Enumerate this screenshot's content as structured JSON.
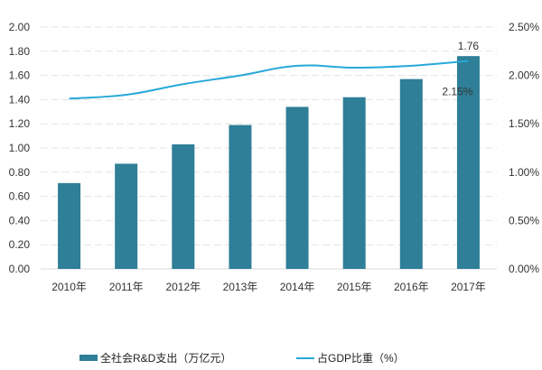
{
  "chart_data": {
    "type": "bar+line",
    "title": "",
    "categories": [
      "2010年",
      "2011年",
      "2012年",
      "2013年",
      "2014年",
      "2015年",
      "2016年",
      "2017年"
    ],
    "series": [
      {
        "name": "全社会R&D支出（万亿元）",
        "type": "bar",
        "axis": "left",
        "color": "#2e7f97",
        "values": [
          0.71,
          0.87,
          1.03,
          1.19,
          1.34,
          1.42,
          1.57,
          1.76
        ]
      },
      {
        "name": "占GDP比重（%）",
        "type": "line",
        "axis": "right",
        "color": "#27a8d9",
        "values": [
          1.76,
          1.8,
          1.91,
          2.0,
          2.1,
          2.08,
          2.1,
          2.15
        ]
      }
    ],
    "annotations": [
      {
        "label": "1.76",
        "series": 0,
        "index": 7
      },
      {
        "label": "2.15%",
        "series": 1,
        "index": 7
      }
    ],
    "left_axis": {
      "min": 0,
      "max": 2.0,
      "step": 0.2,
      "ticks": [
        "0.00",
        "0.20",
        "0.40",
        "0.60",
        "0.80",
        "1.00",
        "1.20",
        "1.40",
        "1.60",
        "1.80",
        "2.00"
      ]
    },
    "right_axis": {
      "min": 0,
      "max": 2.5,
      "step": 0.5,
      "ticks": [
        "0.00%",
        "0.50%",
        "1.00%",
        "1.50%",
        "2.00%",
        "2.50%"
      ]
    },
    "xlabel": "",
    "ylabel": "",
    "grid": true,
    "legend_position": "bottom"
  },
  "legend": {
    "bar_label": "全社会R&D支出（万亿元）",
    "line_label": "占GDP比重（%）"
  }
}
